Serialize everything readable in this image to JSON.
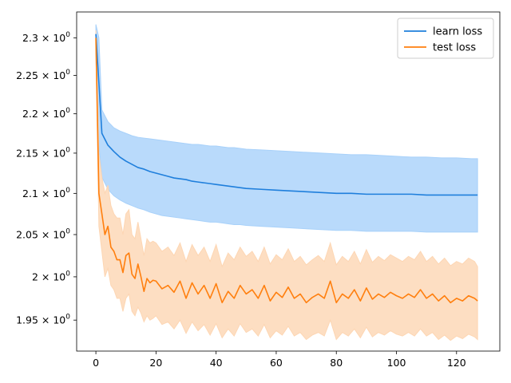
{
  "chart_data": {
    "type": "line",
    "title": "",
    "xlabel": "",
    "ylabel": "",
    "yscale": "log",
    "xlim": [
      -6.4,
      134.4
    ],
    "ylim": [
      1.915,
      2.335
    ],
    "grid": false,
    "legend": {
      "placement": "top-right"
    },
    "x_ticks": [
      0,
      20,
      40,
      60,
      80,
      100,
      120
    ],
    "x_tick_labels": [
      "0",
      "20",
      "40",
      "60",
      "80",
      "100",
      "120"
    ],
    "y_ticks": [
      1.95,
      2.0,
      2.05,
      2.1,
      2.15,
      2.2,
      2.25,
      2.3
    ],
    "y_tick_labels": [
      {
        "mantissa": "1.95",
        "base": "10",
        "exp": "0"
      },
      {
        "mantissa": "2",
        "base": "10",
        "exp": "0"
      },
      {
        "mantissa": "2.05",
        "base": "10",
        "exp": "0"
      },
      {
        "mantissa": "2.1",
        "base": "10",
        "exp": "0"
      },
      {
        "mantissa": "2.15",
        "base": "10",
        "exp": "0"
      },
      {
        "mantissa": "2.2",
        "base": "10",
        "exp": "0"
      },
      {
        "mantissa": "2.25",
        "base": "10",
        "exp": "0"
      },
      {
        "mantissa": "2.3",
        "base": "10",
        "exp": "0"
      }
    ],
    "series": [
      {
        "name": "learn loss",
        "color": "#1f7fdc",
        "band_color": "#a8d1fa",
        "x": [
          0,
          1,
          2,
          4,
          6,
          8,
          10,
          12,
          14,
          16,
          18,
          20,
          22,
          24,
          26,
          28,
          30,
          32,
          34,
          36,
          38,
          40,
          42,
          44,
          46,
          48,
          50,
          55,
          60,
          65,
          70,
          75,
          80,
          85,
          90,
          95,
          100,
          105,
          110,
          115,
          120,
          125,
          127
        ],
        "values": [
          2.305,
          2.24,
          2.175,
          2.16,
          2.152,
          2.145,
          2.14,
          2.136,
          2.132,
          2.13,
          2.127,
          2.125,
          2.123,
          2.121,
          2.119,
          2.118,
          2.117,
          2.115,
          2.114,
          2.113,
          2.112,
          2.111,
          2.11,
          2.109,
          2.108,
          2.107,
          2.106,
          2.105,
          2.104,
          2.103,
          2.102,
          2.101,
          2.1,
          2.1,
          2.099,
          2.099,
          2.099,
          2.099,
          2.098,
          2.098,
          2.098,
          2.098,
          2.098
        ],
        "lower": [
          2.29,
          2.16,
          2.12,
          2.105,
          2.097,
          2.092,
          2.088,
          2.085,
          2.082,
          2.08,
          2.077,
          2.075,
          2.073,
          2.072,
          2.071,
          2.07,
          2.069,
          2.068,
          2.067,
          2.066,
          2.065,
          2.065,
          2.064,
          2.063,
          2.062,
          2.062,
          2.061,
          2.06,
          2.059,
          2.058,
          2.057,
          2.056,
          2.055,
          2.055,
          2.054,
          2.054,
          2.054,
          2.054,
          2.053,
          2.053,
          2.053,
          2.053,
          2.053
        ],
        "upper": [
          2.318,
          2.3,
          2.205,
          2.19,
          2.182,
          2.178,
          2.175,
          2.172,
          2.17,
          2.169,
          2.168,
          2.167,
          2.166,
          2.165,
          2.164,
          2.163,
          2.162,
          2.161,
          2.161,
          2.16,
          2.159,
          2.159,
          2.158,
          2.157,
          2.157,
          2.156,
          2.155,
          2.154,
          2.153,
          2.152,
          2.151,
          2.15,
          2.149,
          2.148,
          2.148,
          2.147,
          2.146,
          2.145,
          2.145,
          2.144,
          2.144,
          2.143,
          2.143
        ]
      },
      {
        "name": "test loss",
        "color": "#ff7f0e",
        "band_color": "#fdd6b3",
        "x": [
          0,
          1,
          2,
          3,
          4,
          5,
          6,
          7,
          8,
          9,
          10,
          11,
          12,
          13,
          14,
          15,
          16,
          17,
          18,
          19,
          20,
          22,
          24,
          26,
          28,
          30,
          32,
          34,
          36,
          38,
          40,
          42,
          44,
          46,
          48,
          50,
          52,
          54,
          56,
          58,
          60,
          62,
          64,
          66,
          68,
          70,
          72,
          74,
          76,
          78,
          80,
          82,
          84,
          86,
          88,
          90,
          92,
          94,
          96,
          98,
          100,
          102,
          104,
          106,
          108,
          110,
          112,
          114,
          116,
          118,
          120,
          122,
          124,
          126,
          127
        ],
        "values": [
          2.3,
          2.1,
          2.075,
          2.05,
          2.06,
          2.035,
          2.03,
          2.02,
          2.02,
          2.005,
          2.025,
          2.028,
          2.003,
          1.998,
          2.015,
          2.0,
          1.983,
          1.998,
          1.993,
          1.996,
          1.995,
          1.986,
          1.99,
          1.982,
          1.995,
          1.975,
          1.993,
          1.98,
          1.99,
          1.975,
          1.992,
          1.97,
          1.983,
          1.975,
          1.99,
          1.98,
          1.985,
          1.975,
          1.99,
          1.972,
          1.982,
          1.976,
          1.988,
          1.975,
          1.98,
          1.97,
          1.976,
          1.98,
          1.975,
          1.995,
          1.97,
          1.98,
          1.975,
          1.985,
          1.972,
          1.987,
          1.974,
          1.98,
          1.976,
          1.982,
          1.978,
          1.975,
          1.98,
          1.976,
          1.985,
          1.975,
          1.98,
          1.972,
          1.978,
          1.97,
          1.975,
          1.972,
          1.978,
          1.975,
          1.972
        ],
        "lower": [
          2.28,
          2.06,
          2.03,
          2.0,
          2.01,
          1.99,
          1.985,
          1.975,
          1.975,
          1.96,
          1.975,
          1.98,
          1.96,
          1.955,
          1.965,
          1.958,
          1.948,
          1.955,
          1.95,
          1.952,
          1.955,
          1.945,
          1.948,
          1.94,
          1.95,
          1.935,
          1.948,
          1.938,
          1.945,
          1.933,
          1.946,
          1.93,
          1.94,
          1.932,
          1.946,
          1.936,
          1.94,
          1.932,
          1.945,
          1.93,
          1.938,
          1.933,
          1.943,
          1.932,
          1.936,
          1.928,
          1.933,
          1.936,
          1.932,
          1.95,
          1.928,
          1.936,
          1.932,
          1.94,
          1.93,
          1.942,
          1.931,
          1.936,
          1.933,
          1.938,
          1.934,
          1.932,
          1.936,
          1.932,
          1.94,
          1.932,
          1.936,
          1.928,
          1.933,
          1.927,
          1.932,
          1.929,
          1.934,
          1.931,
          1.928
        ],
        "upper": [
          2.31,
          2.15,
          2.12,
          2.1,
          2.11,
          2.085,
          2.075,
          2.07,
          2.07,
          2.05,
          2.075,
          2.08,
          2.05,
          2.045,
          2.065,
          2.045,
          2.025,
          2.045,
          2.04,
          2.042,
          2.04,
          2.03,
          2.035,
          2.025,
          2.04,
          2.018,
          2.038,
          2.025,
          2.035,
          2.018,
          2.038,
          2.012,
          2.028,
          2.02,
          2.035,
          2.024,
          2.03,
          2.018,
          2.035,
          2.015,
          2.026,
          2.02,
          2.033,
          2.018,
          2.024,
          2.014,
          2.02,
          2.025,
          2.018,
          2.04,
          2.014,
          2.024,
          2.018,
          2.03,
          2.015,
          2.032,
          2.017,
          2.024,
          2.019,
          2.026,
          2.022,
          2.018,
          2.024,
          2.02,
          2.03,
          2.018,
          2.024,
          2.015,
          2.022,
          2.013,
          2.018,
          2.015,
          2.022,
          2.018,
          2.012
        ]
      }
    ]
  }
}
